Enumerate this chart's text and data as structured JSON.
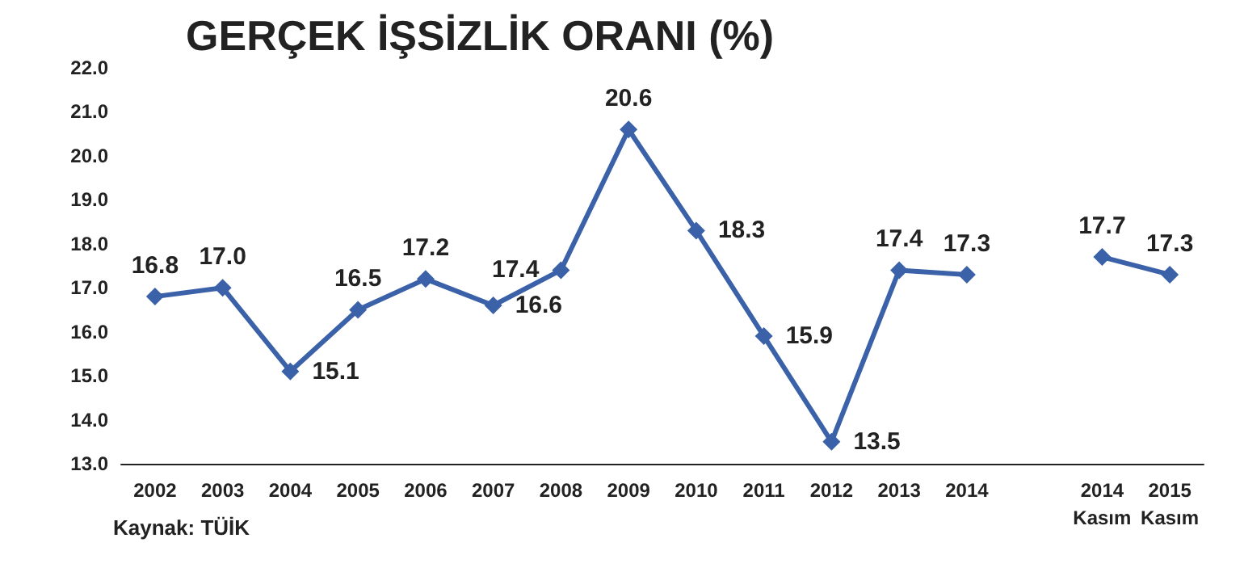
{
  "chart_data": {
    "type": "line",
    "title": "GERÇEK İŞSİZLİK ORANI (%)",
    "categories": [
      "2002",
      "2003",
      "2004",
      "2005",
      "2006",
      "2007",
      "2008",
      "2009",
      "2010",
      "2011",
      "2012",
      "2013",
      "2014",
      null,
      "2014\nKasım",
      "2015\nKasım"
    ],
    "series": [
      {
        "color": "#3b62a8",
        "values": [
          16.8,
          17.0,
          15.1,
          16.5,
          17.2,
          16.6,
          17.4,
          20.6,
          18.3,
          15.9,
          13.5,
          17.4,
          17.3,
          null,
          17.7,
          17.3
        ],
        "value_labels": [
          "16.8",
          "17.0",
          "15.1",
          "16.5",
          "17.2",
          "16.6",
          "17.4",
          "20.6",
          "18.3",
          "15.9",
          "13.5",
          "17.4",
          "17.3",
          null,
          "17.7",
          "17.3"
        ]
      }
    ],
    "ylim": [
      13,
      22
    ],
    "yticks": [
      {
        "value": 13,
        "label": "13.0"
      },
      {
        "value": 14,
        "label": "14.0"
      },
      {
        "value": 15,
        "label": "15.0"
      },
      {
        "value": 16,
        "label": "16.0"
      },
      {
        "value": 17,
        "label": "17.0"
      },
      {
        "value": 18,
        "label": "18.0"
      },
      {
        "value": 19,
        "label": "19.0"
      },
      {
        "value": 20,
        "label": "20.0"
      },
      {
        "value": 21,
        "label": "21.0"
      },
      {
        "value": 22,
        "label": "22.0"
      }
    ],
    "annotations": [
      "Kaynak: TÜİK"
    ],
    "grid": false,
    "marker": "diamond",
    "line_style": "solid"
  }
}
